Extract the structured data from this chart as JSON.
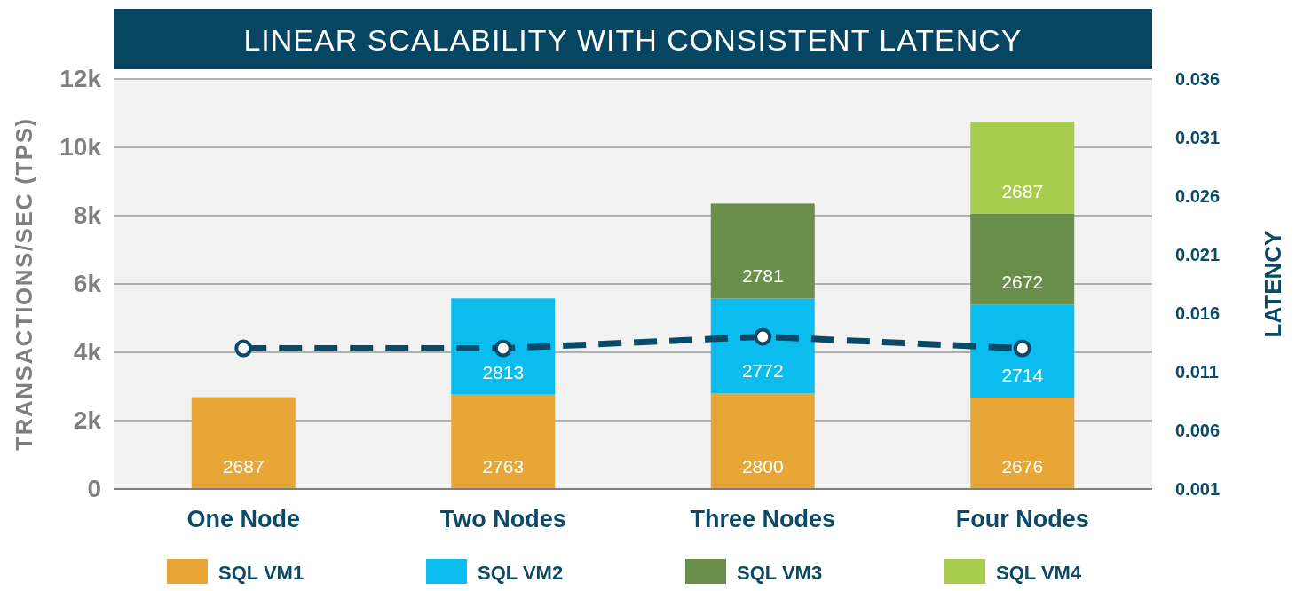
{
  "chart_data": {
    "type": "bar",
    "title": "LINEAR SCALABILITY WITH CONSISTENT LATENCY",
    "ylabel": "TRANSACTIONS/SEC (TPS)",
    "y2label": "LATENCY",
    "categories": [
      "One Node",
      "Two Nodes",
      "Three Nodes",
      "Four Nodes"
    ],
    "stacked": true,
    "series": [
      {
        "name": "SQL VM1",
        "color": "#e8a636",
        "values": [
          2687,
          2763,
          2800,
          2676
        ],
        "value_labels": [
          "2687",
          "2763",
          "2800",
          "2676"
        ]
      },
      {
        "name": "SQL VM2",
        "color": "#0bbdef",
        "values": [
          null,
          2813,
          2772,
          2714
        ],
        "value_labels": [
          null,
          "2813",
          "2772",
          "2714"
        ]
      },
      {
        "name": "SQL VM3",
        "color": "#6a8f4b",
        "values": [
          null,
          null,
          2781,
          2672
        ],
        "value_labels": [
          null,
          null,
          "2781",
          "2672"
        ]
      },
      {
        "name": "SQL VM4",
        "color": "#a8cd4d",
        "values": [
          null,
          null,
          null,
          2687
        ],
        "value_labels": [
          null,
          null,
          null,
          "2687"
        ]
      },
      {
        "type": "line",
        "axis": "y2",
        "color": "#0b4a66",
        "values": [
          0.013,
          0.013,
          0.014,
          0.013
        ],
        "marker": "circle",
        "line_style": "dashed"
      }
    ],
    "ylim": [
      0,
      12000
    ],
    "yticks": [
      {
        "value": 0,
        "label": "0"
      },
      {
        "value": 2000,
        "label": "2k"
      },
      {
        "value": 4000,
        "label": "4k"
      },
      {
        "value": 6000,
        "label": "6k"
      },
      {
        "value": 8000,
        "label": "8k"
      },
      {
        "value": 10000,
        "label": "10k"
      },
      {
        "value": 12000,
        "label": "12k"
      }
    ],
    "y2lim": [
      0.001,
      0.036
    ],
    "y2ticks": [
      0.001,
      0.006,
      0.011,
      0.016,
      0.021,
      0.026,
      0.031,
      0.036
    ],
    "grid": "y",
    "legend": "bottom"
  }
}
